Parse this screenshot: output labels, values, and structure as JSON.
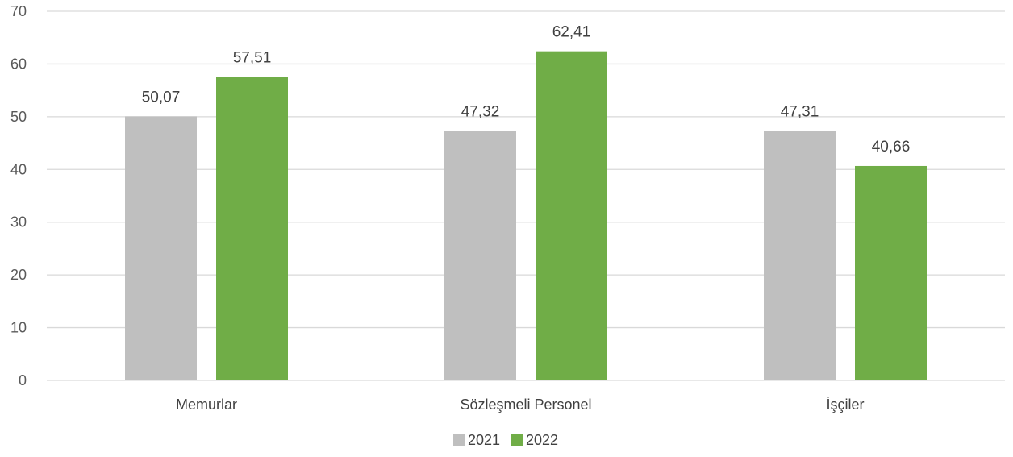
{
  "chart_data": {
    "type": "bar",
    "categories": [
      "Memurlar",
      "Sözleşmeli Personel",
      "İşçiler"
    ],
    "series": [
      {
        "name": "2021",
        "color": "#bfbfbf",
        "values": [
          50.07,
          47.32,
          47.31
        ],
        "labels": [
          "50,07",
          "47,32",
          "47,31"
        ]
      },
      {
        "name": "2022",
        "color": "#70ad47",
        "values": [
          57.51,
          62.41,
          40.66
        ],
        "labels": [
          "57,51",
          "62,41",
          "40,66"
        ]
      }
    ],
    "ylim": [
      0,
      70
    ],
    "yticks": [
      0,
      10,
      20,
      30,
      40,
      50,
      60,
      70
    ],
    "grid": true,
    "gridColor": "#d9d9d9",
    "legend": "bottom-center"
  }
}
